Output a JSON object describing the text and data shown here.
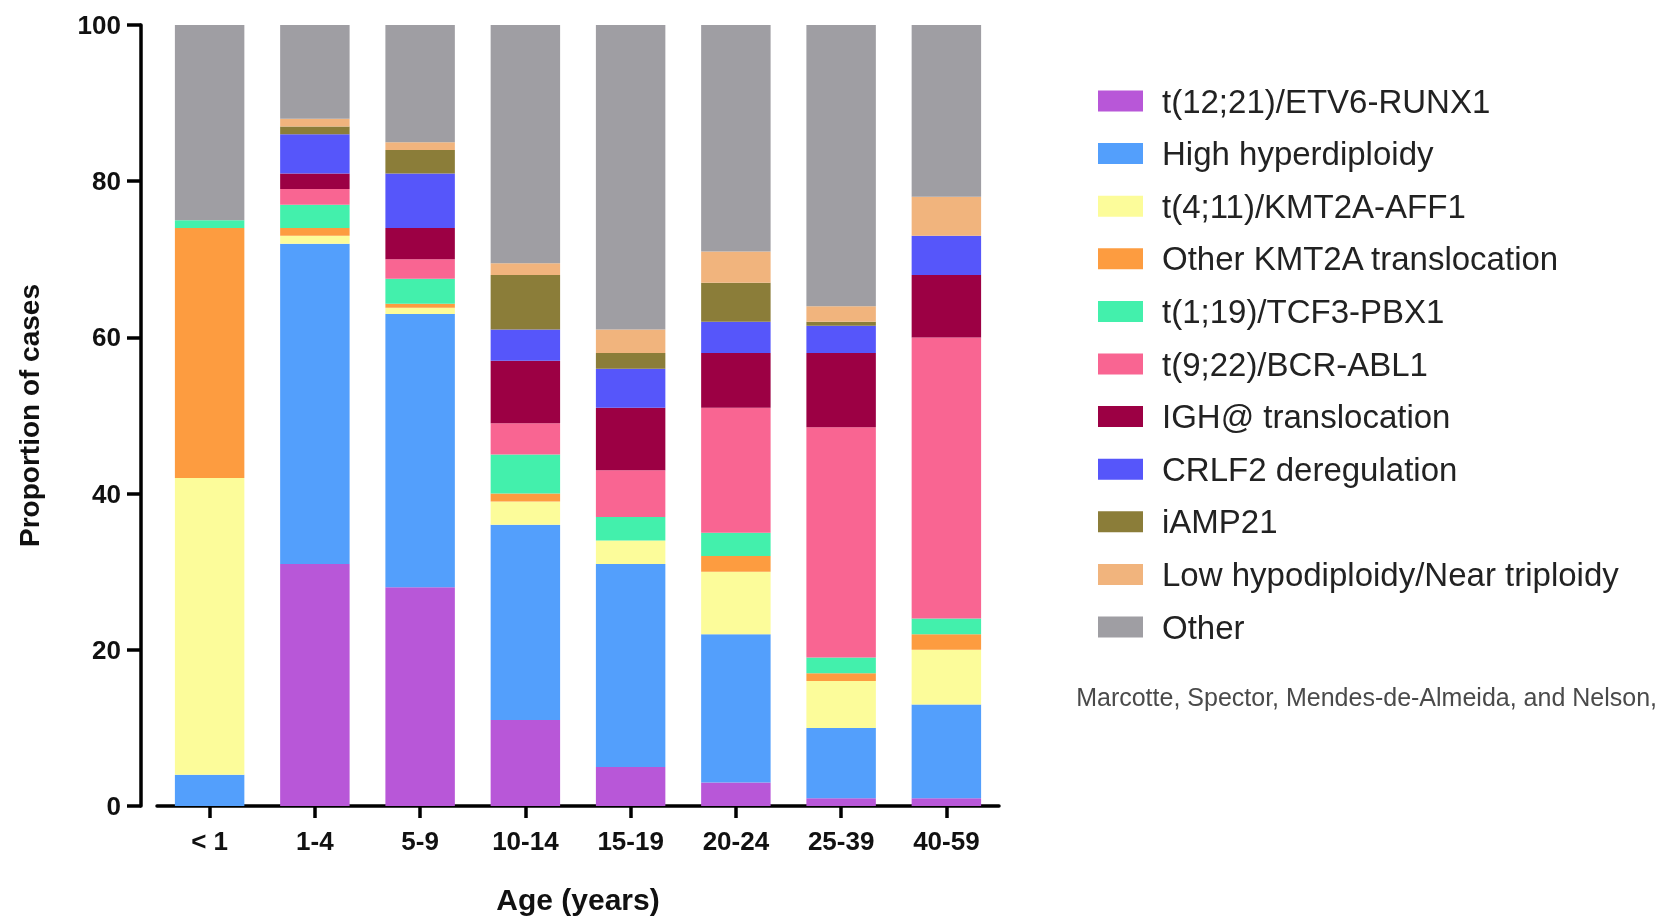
{
  "chart_data": {
    "type": "bar",
    "stacked": true,
    "xlabel": "Age (years)",
    "ylabel": "Proportion of cases",
    "categories": [
      "< 1",
      "1-4",
      "5-9",
      "10-14",
      "15-19",
      "20-24",
      "25-39",
      "40-59"
    ],
    "ylim": [
      0,
      100
    ],
    "yticks": [
      0,
      20,
      40,
      60,
      80,
      100
    ],
    "legend": "right",
    "annotations": [
      "Marcotte, Spector, Mendes-de-Almeida, and Nelson,"
    ],
    "series": [
      {
        "name": "t(12;21)/ETV6-RUNX1",
        "color": "#b857d8",
        "values": [
          0,
          31,
          28,
          11,
          5,
          3,
          1,
          1
        ]
      },
      {
        "name": "High hyperdiploidy",
        "color": "#539ffc",
        "values": [
          4,
          41,
          35,
          25,
          26,
          19,
          9,
          12
        ]
      },
      {
        "name": "t(4;11)/KMT2A-AFF1",
        "color": "#fcfc9a",
        "values": [
          38,
          1,
          0.8,
          3,
          3,
          8,
          6,
          7
        ]
      },
      {
        "name": "Other KMT2A translocation",
        "color": "#fd9c40",
        "values": [
          32,
          1,
          0.5,
          1,
          0,
          2,
          1,
          2
        ]
      },
      {
        "name": "t(1;19)/TCF3-PBX1",
        "color": "#43f0ac",
        "values": [
          1,
          3,
          3.2,
          5,
          3,
          3,
          2,
          2
        ]
      },
      {
        "name": "t(9;22)/BCR-ABL1",
        "color": "#f96592",
        "values": [
          0,
          2,
          2.5,
          4,
          6,
          16,
          29.5,
          36
        ]
      },
      {
        "name": "IGH@ translocation",
        "color": "#9c0044",
        "values": [
          0,
          2,
          4,
          8,
          8,
          7,
          9.5,
          8
        ]
      },
      {
        "name": "CRLF2 deregulation",
        "color": "#5656fa",
        "values": [
          0,
          5,
          7,
          4,
          5,
          4,
          3.5,
          5
        ]
      },
      {
        "name": "iAMP21",
        "color": "#8b7d39",
        "values": [
          0,
          1,
          3,
          7,
          2,
          5,
          0.5,
          0
        ]
      },
      {
        "name": "Low hypodiploidy/Near triploidy",
        "color": "#f1b47d",
        "values": [
          0,
          1,
          1,
          1.5,
          3,
          4,
          2,
          5
        ]
      },
      {
        "name": "Other",
        "color": "#9f9ea3",
        "values": [
          25,
          12,
          15,
          30.5,
          39,
          29,
          36,
          22
        ]
      }
    ]
  }
}
